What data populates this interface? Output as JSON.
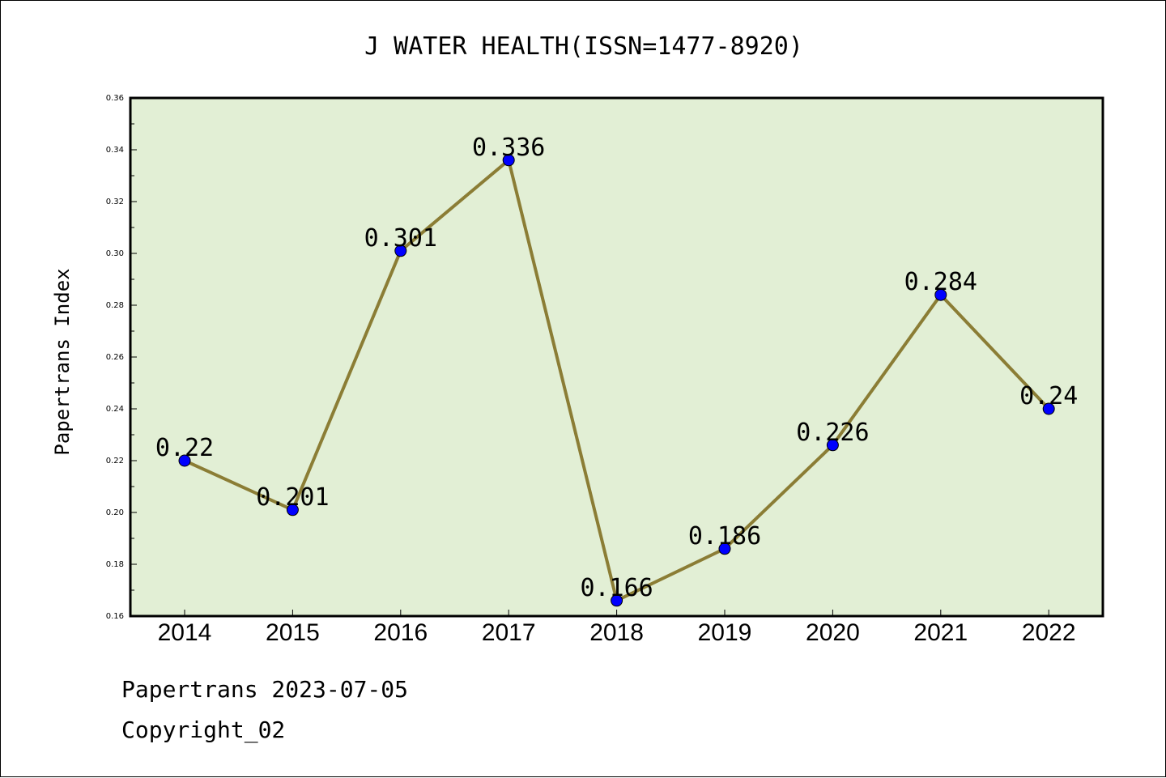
{
  "chart_data": {
    "type": "line",
    "title": "J WATER HEALTH(ISSN=1477-8920)",
    "xlabel": "",
    "ylabel": "Papertrans Index",
    "categories": [
      "2014",
      "2015",
      "2016",
      "2017",
      "2018",
      "2019",
      "2020",
      "2021",
      "2022"
    ],
    "series": [
      {
        "values": [
          0.22,
          0.201,
          0.301,
          0.336,
          0.166,
          0.186,
          0.226,
          0.284,
          0.24
        ],
        "labels": [
          "0.22",
          "0.201",
          "0.301",
          "0.336",
          "0.166",
          "0.186",
          "0.226",
          "0.284",
          "0.24"
        ]
      }
    ],
    "ylim": [
      0.16,
      0.36
    ],
    "yticks": [
      "0.16",
      "0.18",
      "0.20",
      "0.22",
      "0.24",
      "0.26",
      "0.28",
      "0.30",
      "0.32",
      "0.34",
      "0.36"
    ],
    "grid": false,
    "colors": {
      "plot_background": "#e2efd5",
      "line": "#8b7d35",
      "marker": "#0000ff"
    }
  },
  "footer": {
    "line1": "Papertrans 2023-07-05",
    "line2": "Copyright_02"
  }
}
